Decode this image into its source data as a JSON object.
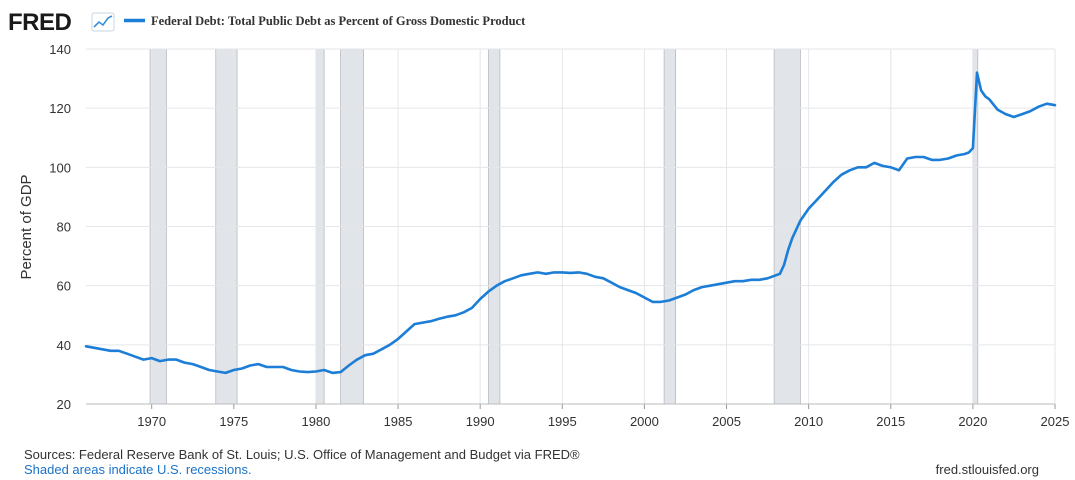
{
  "header": {
    "logo": "FRED",
    "series_title": "Federal Debt: Total Public Debt as Percent of Gross Domestic Product"
  },
  "footer": {
    "sources": "Sources: Federal Reserve Bank of St. Louis; U.S. Office of Management and Budget via FRED®",
    "recession_note": "Shaded areas indicate U.S. recessions.",
    "site": "fred.stlouisfed.org"
  },
  "colors": {
    "line": "#1c7ed6",
    "recession": "#e1e4e8",
    "grid": "#e4e6ea"
  },
  "chart_data": {
    "type": "line",
    "title": "Federal Debt: Total Public Debt as Percent of Gross Domestic Product",
    "xlabel": "",
    "ylabel": "Percent of GDP",
    "xlim": [
      1966.0,
      2025.0
    ],
    "ylim": [
      20,
      140
    ],
    "yticks": [
      20,
      40,
      60,
      80,
      100,
      120,
      140
    ],
    "xticks": [
      1970,
      1975,
      1980,
      1985,
      1990,
      1995,
      2000,
      2005,
      2010,
      2015,
      2020,
      2025
    ],
    "grid": true,
    "recessions": [
      [
        1969.9,
        1970.9
      ],
      [
        1973.9,
        1975.2
      ],
      [
        1980.0,
        1980.5
      ],
      [
        1981.5,
        1982.9
      ],
      [
        1990.5,
        1991.2
      ],
      [
        2001.2,
        2001.9
      ],
      [
        2007.9,
        2009.5
      ],
      [
        2020.0,
        2020.3
      ]
    ],
    "series": [
      {
        "x": [
          1966.0,
          1966.5,
          1967.0,
          1967.5,
          1968.0,
          1968.5,
          1969.0,
          1969.5,
          1970.0,
          1970.5,
          1971.0,
          1971.5,
          1972.0,
          1972.5,
          1973.0,
          1973.5,
          1974.0,
          1974.5,
          1975.0,
          1975.5,
          1976.0,
          1976.5,
          1977.0,
          1977.5,
          1978.0,
          1978.5,
          1979.0,
          1979.5,
          1980.0,
          1980.5,
          1981.0,
          1981.5,
          1982.0,
          1982.5,
          1983.0,
          1983.5,
          1984.0,
          1984.5,
          1985.0,
          1985.5,
          1986.0,
          1986.5,
          1987.0,
          1987.5,
          1988.0,
          1988.5,
          1989.0,
          1989.5,
          1990.0,
          1990.5,
          1991.0,
          1991.5,
          1992.0,
          1992.5,
          1993.0,
          1993.5,
          1994.0,
          1994.5,
          1995.0,
          1995.5,
          1996.0,
          1996.5,
          1997.0,
          1997.5,
          1998.0,
          1998.5,
          1999.0,
          1999.5,
          2000.0,
          2000.5,
          2001.0,
          2001.5,
          2002.0,
          2002.5,
          2003.0,
          2003.5,
          2004.0,
          2004.5,
          2005.0,
          2005.5,
          2006.0,
          2006.5,
          2007.0,
          2007.5,
          2008.0,
          2008.25,
          2008.5,
          2008.75,
          2009.0,
          2009.5,
          2010.0,
          2010.5,
          2011.0,
          2011.5,
          2012.0,
          2012.5,
          2013.0,
          2013.5,
          2014.0,
          2014.5,
          2015.0,
          2015.5,
          2016.0,
          2016.5,
          2017.0,
          2017.5,
          2018.0,
          2018.5,
          2019.0,
          2019.5,
          2019.75,
          2020.0,
          2020.25,
          2020.5,
          2020.75,
          2021.0,
          2021.5,
          2022.0,
          2022.5,
          2023.0,
          2023.5,
          2024.0,
          2024.5,
          2025.0
        ],
        "y": [
          39.5,
          39.0,
          38.5,
          38.0,
          38.0,
          37.0,
          36.0,
          35.0,
          35.5,
          34.5,
          35.0,
          35.0,
          34.0,
          33.5,
          32.5,
          31.5,
          31.0,
          30.5,
          31.5,
          32.0,
          33.0,
          33.5,
          32.5,
          32.5,
          32.5,
          31.5,
          31.0,
          30.8,
          31.0,
          31.5,
          30.5,
          30.8,
          33.0,
          35.0,
          36.5,
          37.0,
          38.5,
          40.0,
          42.0,
          44.5,
          47.0,
          47.5,
          48.0,
          48.8,
          49.5,
          50.0,
          51.0,
          52.5,
          55.5,
          58.0,
          60.0,
          61.5,
          62.5,
          63.5,
          64.0,
          64.5,
          64.0,
          64.5,
          64.5,
          64.3,
          64.5,
          64.0,
          63.0,
          62.5,
          61.0,
          59.5,
          58.5,
          57.5,
          56.0,
          54.5,
          54.5,
          55.0,
          56.0,
          57.0,
          58.5,
          59.5,
          60.0,
          60.5,
          61.0,
          61.5,
          61.5,
          62.0,
          62.0,
          62.5,
          63.5,
          64.0,
          67.0,
          72.0,
          76.0,
          82.0,
          86.0,
          89.0,
          92.0,
          95.0,
          97.5,
          99.0,
          100.0,
          100.0,
          101.5,
          100.5,
          100.0,
          99.0,
          103.0,
          103.5,
          103.5,
          102.5,
          102.5,
          103.0,
          104.0,
          104.5,
          105.0,
          106.5,
          132.0,
          126.0,
          124.0,
          123.0,
          119.5,
          118.0,
          117.0,
          118.0,
          119.0,
          120.5,
          121.5,
          121.0
        ]
      }
    ]
  }
}
